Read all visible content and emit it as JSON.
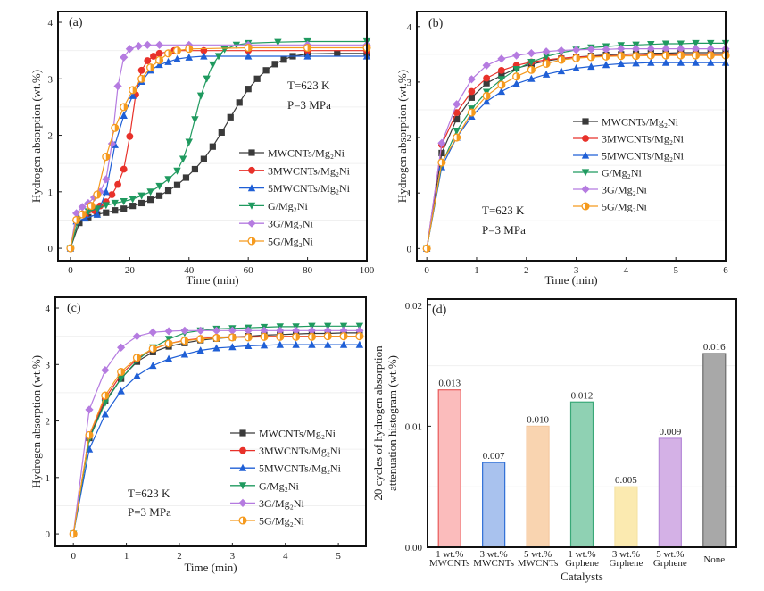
{
  "colors": {
    "MWCNTs/Mg₂Ni": "#3a3a3a",
    "3MWCNTs/Mg₂Ni": "#e8312a",
    "5MWCNTs/Mg₂Ni": "#1f5fd6",
    "G/Mg₂Ni": "#1f9a5f",
    "3G/Mg₂Ni": "#b57be0",
    "5G/Mg₂Ni": "#f59a1e"
  },
  "markers": {
    "MWCNTs/Mg₂Ni": "square",
    "3MWCNTs/Mg₂Ni": "circle",
    "5MWCNTs/Mg₂Ni": "triangle-up",
    "G/Mg₂Ni": "triangle-down",
    "3G/Mg₂Ni": "diamond",
    "5G/Mg₂Ni": "half-circle"
  },
  "chart_data": [
    {
      "panel_label": "(a)",
      "type": "line",
      "xlabel": "Time (min)",
      "ylabel": "Hydrogen absorption (wt.%)",
      "xlim": [
        -4.2,
        100
      ],
      "ylim": [
        -0.22,
        4.19
      ],
      "xticks": [
        0,
        20,
        40,
        60,
        80,
        100
      ],
      "yticks": [
        0,
        1,
        2,
        3,
        4
      ],
      "annotations": [
        "T=623 K",
        "P=3 MPa"
      ],
      "legend": "center-right",
      "series": [
        {
          "name": "MWCNTs/Mg₂Ni",
          "x": [
            0,
            3,
            6,
            9,
            12,
            15,
            18,
            21,
            24,
            27,
            30,
            33,
            36,
            39,
            42,
            45,
            48,
            51,
            54,
            57,
            60,
            63,
            66,
            69,
            72,
            75,
            80,
            90,
            100
          ],
          "y": [
            0,
            0.45,
            0.55,
            0.6,
            0.63,
            0.67,
            0.7,
            0.75,
            0.8,
            0.86,
            0.93,
            1.02,
            1.12,
            1.25,
            1.4,
            1.58,
            1.8,
            2.05,
            2.32,
            2.58,
            2.82,
            3.0,
            3.15,
            3.26,
            3.34,
            3.4,
            3.44,
            3.45,
            3.45
          ]
        },
        {
          "name": "3MWCNTs/Mg₂Ni",
          "x": [
            0,
            2,
            5,
            8,
            10,
            12,
            14,
            16,
            18,
            20,
            22,
            24,
            26,
            28,
            30,
            35,
            45,
            60,
            80,
            100
          ],
          "y": [
            0,
            0.5,
            0.58,
            0.67,
            0.75,
            0.82,
            0.95,
            1.13,
            1.4,
            1.98,
            2.72,
            3.15,
            3.32,
            3.4,
            3.45,
            3.5,
            3.5,
            3.5,
            3.5,
            3.5
          ]
        },
        {
          "name": "5MWCNTs/Mg₂Ni",
          "x": [
            0,
            2,
            5,
            9,
            12,
            15,
            18,
            21,
            24,
            27,
            30,
            33,
            36,
            40,
            45,
            60,
            80,
            100
          ],
          "y": [
            0,
            0.48,
            0.53,
            0.6,
            1.0,
            1.83,
            2.35,
            2.7,
            2.95,
            3.15,
            3.25,
            3.3,
            3.35,
            3.38,
            3.4,
            3.4,
            3.4,
            3.4
          ]
        },
        {
          "name": "G/Mg₂Ni",
          "x": [
            0,
            3,
            6,
            9,
            12,
            15,
            18,
            21,
            24,
            27,
            30,
            33,
            36,
            38,
            40,
            42,
            44,
            46,
            48,
            50,
            52,
            56,
            60,
            70,
            80,
            100
          ],
          "y": [
            0,
            0.55,
            0.65,
            0.7,
            0.76,
            0.8,
            0.83,
            0.87,
            0.93,
            1.0,
            1.1,
            1.22,
            1.37,
            1.58,
            1.88,
            2.28,
            2.7,
            3.0,
            3.25,
            3.4,
            3.52,
            3.6,
            3.63,
            3.65,
            3.66,
            3.66
          ]
        },
        {
          "name": "3G/Mg₂Ni",
          "x": [
            0,
            2,
            4,
            6,
            8,
            10,
            12,
            14,
            16,
            18,
            20,
            23,
            26,
            30,
            40,
            60,
            80,
            100
          ],
          "y": [
            0,
            0.62,
            0.73,
            0.8,
            0.9,
            1.0,
            1.22,
            1.85,
            2.87,
            3.38,
            3.53,
            3.58,
            3.6,
            3.6,
            3.6,
            3.6,
            3.6,
            3.6
          ]
        },
        {
          "name": "5G/Mg₂Ni",
          "x": [
            0,
            2,
            4,
            7,
            9,
            12,
            15,
            18,
            21,
            24,
            27,
            30,
            33,
            36,
            40,
            60,
            80,
            100
          ],
          "y": [
            0,
            0.5,
            0.6,
            0.75,
            0.95,
            1.62,
            2.13,
            2.5,
            2.8,
            3.0,
            3.2,
            3.33,
            3.45,
            3.5,
            3.53,
            3.55,
            3.55,
            3.55
          ]
        }
      ]
    },
    {
      "panel_label": "(b)",
      "type": "line",
      "xlabel": "Time (min)",
      "ylabel": "Hydrogen absorption (wt.%)",
      "xlim": [
        -0.2,
        6
      ],
      "ylim": [
        -0.22,
        4.27
      ],
      "xticks": [
        0,
        1,
        2,
        3,
        4,
        5,
        6
      ],
      "yticks": [
        0,
        1,
        2,
        3,
        4
      ],
      "annotations": [
        "T=623 K",
        "P=3 MPa"
      ],
      "legend": "center-right",
      "x": [
        0,
        0.3,
        0.6,
        0.9,
        1.2,
        1.5,
        1.8,
        2.1,
        2.4,
        2.7,
        3.0,
        3.3,
        3.6,
        3.9,
        4.2,
        4.5,
        4.8,
        5.1,
        5.4,
        5.7,
        6.0
      ],
      "series": [
        {
          "name": "MWCNTs/Mg₂Ni",
          "y": [
            0,
            1.72,
            2.33,
            2.72,
            2.98,
            3.12,
            3.25,
            3.32,
            3.38,
            3.42,
            3.45,
            3.47,
            3.49,
            3.5,
            3.51,
            3.52,
            3.52,
            3.53,
            3.53,
            3.53,
            3.53
          ]
        },
        {
          "name": "3MWCNTs/Mg₂Ni",
          "y": [
            0,
            1.87,
            2.45,
            2.83,
            3.07,
            3.21,
            3.3,
            3.36,
            3.4,
            3.43,
            3.45,
            3.46,
            3.47,
            3.48,
            3.48,
            3.49,
            3.49,
            3.5,
            3.5,
            3.5,
            3.5
          ]
        },
        {
          "name": "5MWCNTs/Mg₂Ni",
          "y": [
            0,
            1.47,
            2.0,
            2.38,
            2.65,
            2.83,
            2.97,
            3.06,
            3.14,
            3.2,
            3.25,
            3.28,
            3.31,
            3.33,
            3.34,
            3.35,
            3.35,
            3.35,
            3.35,
            3.35,
            3.35
          ]
        },
        {
          "name": "G/Mg₂Ni",
          "y": [
            0,
            1.52,
            2.12,
            2.52,
            2.82,
            3.05,
            3.23,
            3.36,
            3.46,
            3.53,
            3.58,
            3.62,
            3.64,
            3.66,
            3.67,
            3.68,
            3.69,
            3.69,
            3.7,
            3.7,
            3.7
          ]
        },
        {
          "name": "3G/Mg₂Ni",
          "y": [
            0,
            1.9,
            2.6,
            3.05,
            3.3,
            3.42,
            3.48,
            3.52,
            3.55,
            3.57,
            3.58,
            3.59,
            3.59,
            3.6,
            3.6,
            3.6,
            3.6,
            3.6,
            3.6,
            3.6,
            3.6
          ]
        },
        {
          "name": "5G/Mg₂Ni",
          "y": [
            0,
            1.55,
            2.0,
            2.45,
            2.75,
            2.95,
            3.1,
            3.22,
            3.33,
            3.4,
            3.43,
            3.45,
            3.46,
            3.47,
            3.47,
            3.48,
            3.48,
            3.48,
            3.48,
            3.48,
            3.48
          ]
        }
      ]
    },
    {
      "panel_label": "(c)",
      "type": "line",
      "xlabel": "Time (min)",
      "ylabel": "Hydrogen absorption (wt.%)",
      "xlim": [
        -0.34,
        5.52
      ],
      "ylim": [
        -0.22,
        4.19
      ],
      "xticks": [
        0,
        1,
        2,
        3,
        4,
        5
      ],
      "yticks": [
        0,
        1,
        2,
        3,
        4
      ],
      "annotations": [
        "T=623 K",
        "P=3 MPa"
      ],
      "legend": "center-right",
      "x": [
        0,
        0.3,
        0.6,
        0.9,
        1.2,
        1.5,
        1.8,
        2.1,
        2.4,
        2.7,
        3.0,
        3.3,
        3.6,
        3.9,
        4.2,
        4.5,
        4.8,
        5.1,
        5.4
      ],
      "series": [
        {
          "name": "MWCNTs/Mg₂Ni",
          "y": [
            0,
            1.7,
            2.35,
            2.75,
            3.05,
            3.22,
            3.32,
            3.38,
            3.43,
            3.46,
            3.48,
            3.5,
            3.52,
            3.53,
            3.54,
            3.55,
            3.55,
            3.56,
            3.56
          ]
        },
        {
          "name": "3MWCNTs/Mg₂Ni",
          "y": [
            0,
            1.75,
            2.4,
            2.82,
            3.1,
            3.27,
            3.37,
            3.43,
            3.46,
            3.48,
            3.49,
            3.49,
            3.5,
            3.5,
            3.5,
            3.5,
            3.5,
            3.5,
            3.5
          ]
        },
        {
          "name": "5MWCNTs/Mg₂Ni",
          "y": [
            0,
            1.5,
            2.12,
            2.53,
            2.8,
            2.98,
            3.1,
            3.18,
            3.25,
            3.29,
            3.31,
            3.33,
            3.34,
            3.35,
            3.35,
            3.35,
            3.35,
            3.35,
            3.35
          ]
        },
        {
          "name": "G/Mg₂Ni",
          "y": [
            0,
            1.68,
            2.32,
            2.75,
            3.07,
            3.3,
            3.45,
            3.56,
            3.6,
            3.63,
            3.64,
            3.65,
            3.66,
            3.67,
            3.67,
            3.68,
            3.68,
            3.68,
            3.68
          ]
        },
        {
          "name": "3G/Mg₂Ni",
          "y": [
            0,
            2.2,
            2.9,
            3.3,
            3.5,
            3.57,
            3.59,
            3.6,
            3.6,
            3.6,
            3.6,
            3.6,
            3.6,
            3.6,
            3.6,
            3.6,
            3.6,
            3.6,
            3.6
          ]
        },
        {
          "name": "5G/Mg₂Ni",
          "y": [
            0,
            1.75,
            2.45,
            2.87,
            3.12,
            3.28,
            3.37,
            3.42,
            3.45,
            3.47,
            3.48,
            3.48,
            3.49,
            3.49,
            3.49,
            3.49,
            3.5,
            3.5,
            3.5
          ]
        }
      ]
    },
    {
      "panel_label": "(d)",
      "type": "bar",
      "xlabel": "Catalysts",
      "ylabel": [
        "20 cycles of hydrogen absorption",
        "attenuation histogram (wt.%)"
      ],
      "ylim": [
        0,
        0.0205
      ],
      "yticks": [
        "0.00",
        "0.01",
        "0.02"
      ],
      "categories": [
        [
          "1 wt.%",
          "MWCNTs"
        ],
        [
          "3 wt.%",
          "MWCNTs"
        ],
        [
          "5 wt.%",
          "MWCNTs"
        ],
        [
          "1 wt.%",
          "Grphene"
        ],
        [
          "3 wt.%",
          "Grphene"
        ],
        [
          "5 wt.%",
          "Grphene"
        ],
        [
          "None"
        ]
      ],
      "values": [
        0.013,
        0.007,
        0.01,
        0.012,
        0.005,
        0.009,
        0.016
      ],
      "value_labels": [
        "0.013",
        "0.007",
        "0.010",
        "0.012",
        "0.005",
        "0.009",
        "0.016"
      ],
      "bar_fill": [
        "#fbbcbc",
        "#a9c2ee",
        "#f9d4b0",
        "#8fd1b3",
        "#fbeab0",
        "#d4b1e6",
        "#a8a8a8"
      ],
      "bar_stroke": [
        "#e85a5a",
        "#2f6fd6",
        "#f5c9a0",
        "#3aa878",
        "#f5e3a4",
        "#b68ad8",
        "#6a6a6a"
      ]
    }
  ]
}
